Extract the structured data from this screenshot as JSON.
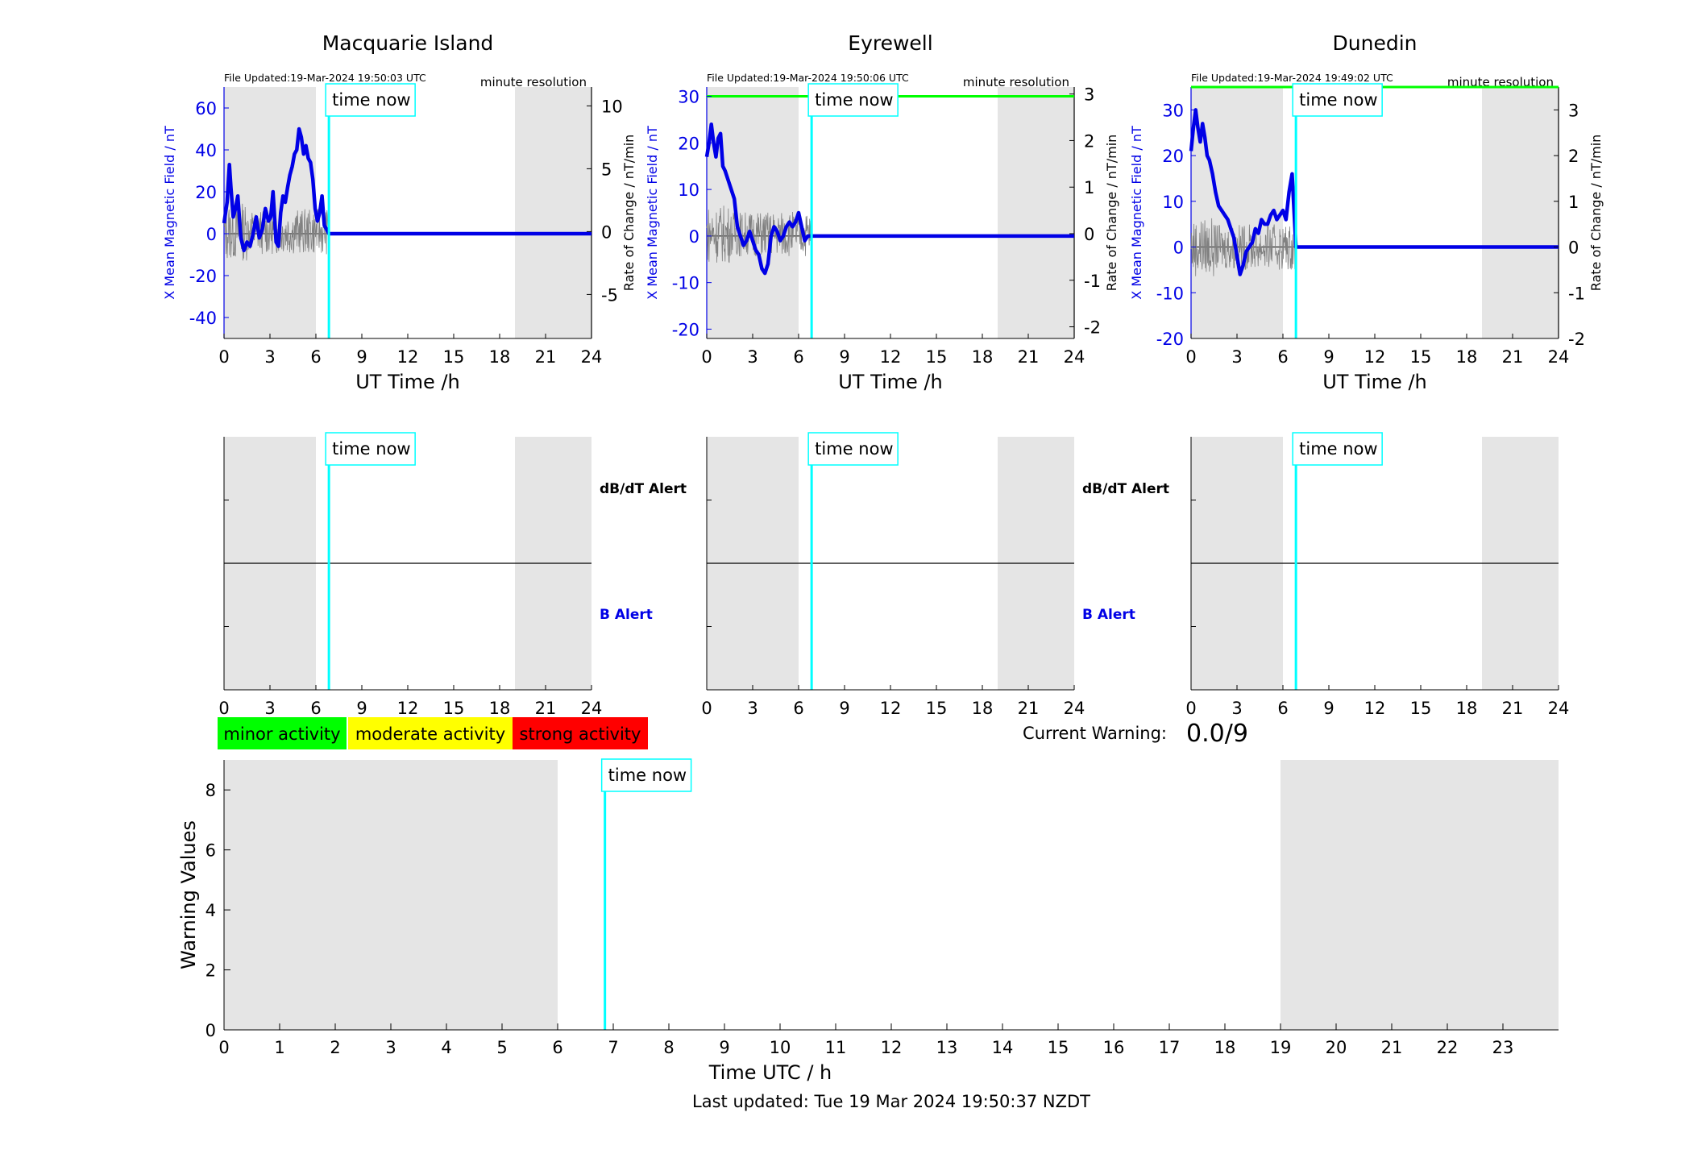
{
  "figure": {
    "last_updated": "Last updated: Tue 19 Mar 2024 19:50:37 NZDT",
    "current_warning_label": "Current Warning:",
    "current_warning_value": "0.0/9",
    "legend": [
      {
        "label": "minor activity",
        "color": "#00ff00"
      },
      {
        "label": "moderate activity",
        "color": "#ffff00"
      },
      {
        "label": "strong activity",
        "color": "#ff0000"
      }
    ],
    "time_now_label": "time now",
    "night_shading_color": "#e5e5e5",
    "time_now_color": "#00ffff",
    "field_color": "#0000e6",
    "threshold_color": "#00ff00"
  },
  "chart_data": [
    {
      "type": "line",
      "title": "Macquarie Island",
      "file_updated": "File Updated:19-Mar-2024 19:50:03 UTC",
      "resolution": "minute resolution",
      "xlabel": "UT Time /h",
      "ylabel_left": "X Mean Magnetic Field / nT",
      "ylabel_right": "Rate of Change / nT/min",
      "xlim": [
        0,
        24
      ],
      "xticks": [
        "0",
        "3",
        "6",
        "9",
        "12",
        "15",
        "18",
        "21",
        "24"
      ],
      "ylim_left": [
        -50,
        70
      ],
      "yticks_left": [
        "-40",
        "-20",
        "0",
        "20",
        "40",
        "60"
      ],
      "ylim_right": [
        -8.5,
        11.5
      ],
      "yticks_right": [
        "-5",
        "0",
        "5",
        "10"
      ],
      "time_now": 6.85,
      "night_shading": [
        [
          0,
          6
        ],
        [
          19,
          24
        ]
      ],
      "threshold": null,
      "series": [
        {
          "x": [
            0,
            0.2,
            0.35,
            0.45,
            0.6,
            0.75,
            0.9,
            1.1,
            1.3,
            1.5,
            1.7,
            1.9,
            2.1,
            2.3,
            2.5,
            2.7,
            2.9,
            3.05,
            3.2,
            3.4,
            3.55,
            3.7,
            3.85,
            4.0,
            4.15,
            4.3,
            4.45,
            4.6,
            4.75,
            4.9,
            5.05,
            5.2,
            5.35,
            5.5,
            5.65,
            5.8,
            5.95,
            6.1,
            6.25,
            6.4,
            6.55,
            6.7,
            6.85,
            24
          ],
          "values": [
            5,
            15,
            33,
            22,
            8,
            12,
            18,
            -2,
            -8,
            -4,
            -6,
            0,
            8,
            -2,
            2,
            12,
            6,
            8,
            20,
            -4,
            -6,
            10,
            18,
            15,
            22,
            28,
            32,
            38,
            40,
            50,
            46,
            38,
            42,
            36,
            34,
            26,
            12,
            6,
            10,
            18,
            4,
            2,
            0,
            0
          ]
        }
      ]
    },
    {
      "type": "line",
      "title": "Eyrewell",
      "file_updated": "File Updated:19-Mar-2024 19:50:06 UTC",
      "resolution": "minute resolution",
      "xlabel": "UT Time /h",
      "ylabel_left": "X Mean Magnetic Field / nT",
      "ylabel_right": "Rate of Change / nT/min",
      "xlim": [
        0,
        24
      ],
      "xticks": [
        "0",
        "3",
        "6",
        "9",
        "12",
        "15",
        "18",
        "21",
        "24"
      ],
      "ylim_left": [
        -22,
        32
      ],
      "yticks_left": [
        "-20",
        "-10",
        "0",
        "10",
        "20",
        "30"
      ],
      "ylim_right": [
        -2.25,
        3.15
      ],
      "yticks_right": [
        "-2",
        "-1",
        "0",
        "1",
        "2",
        "3"
      ],
      "time_now": 6.85,
      "night_shading": [
        [
          0,
          6
        ],
        [
          19,
          24
        ]
      ],
      "threshold": 30,
      "series": [
        {
          "x": [
            0,
            0.15,
            0.3,
            0.45,
            0.6,
            0.75,
            0.9,
            1.05,
            1.2,
            1.4,
            1.6,
            1.8,
            2.0,
            2.2,
            2.4,
            2.6,
            2.8,
            3.0,
            3.2,
            3.4,
            3.6,
            3.8,
            4.0,
            4.2,
            4.4,
            4.6,
            4.8,
            5.0,
            5.2,
            5.4,
            5.6,
            5.8,
            6.0,
            6.2,
            6.4,
            6.6,
            6.85,
            24
          ],
          "values": [
            17,
            20,
            24,
            20,
            17,
            21,
            22,
            15,
            14,
            12,
            10,
            8,
            2,
            0,
            -2,
            -1,
            1,
            -1,
            -3,
            -4,
            -7,
            -8,
            -6,
            0,
            2,
            1,
            -1,
            0,
            2,
            3,
            2,
            3,
            5,
            2,
            -1,
            0,
            0,
            0
          ]
        }
      ]
    },
    {
      "type": "line",
      "title": "Dunedin",
      "file_updated": "File Updated:19-Mar-2024 19:49:02 UTC",
      "resolution": "minute resolution",
      "xlabel": "UT Time /h",
      "ylabel_left": "X Mean Magnetic Field / nT",
      "ylabel_right": "Rate of Change / nT/min",
      "xlim": [
        0,
        24
      ],
      "xticks": [
        "0",
        "3",
        "6",
        "9",
        "12",
        "15",
        "18",
        "21",
        "24"
      ],
      "ylim_left": [
        -20,
        35
      ],
      "yticks_left": [
        "-20",
        "-10",
        "0",
        "10",
        "20",
        "30"
      ],
      "ylim_right": [
        -2,
        3.5
      ],
      "yticks_right": [
        "-2",
        "-1",
        "0",
        "1",
        "2",
        "3"
      ],
      "time_now": 6.85,
      "night_shading": [
        [
          0,
          6
        ],
        [
          19,
          24
        ]
      ],
      "threshold": 35,
      "series": [
        {
          "x": [
            0,
            0.15,
            0.3,
            0.45,
            0.6,
            0.75,
            0.9,
            1.05,
            1.2,
            1.4,
            1.6,
            1.8,
            2.0,
            2.2,
            2.4,
            2.6,
            2.8,
            3.0,
            3.2,
            3.4,
            3.6,
            3.8,
            4.0,
            4.2,
            4.4,
            4.6,
            4.8,
            5.0,
            5.2,
            5.4,
            5.6,
            5.8,
            6.0,
            6.2,
            6.4,
            6.6,
            6.85,
            24
          ],
          "values": [
            21,
            26,
            30,
            26,
            23,
            27,
            24,
            20,
            19,
            16,
            12,
            9,
            8,
            7,
            6,
            4,
            2,
            -2,
            -6,
            -4,
            -1,
            0,
            1,
            4,
            3,
            6,
            5,
            5,
            7,
            8,
            6,
            7,
            8,
            6,
            12,
            16,
            0,
            0
          ]
        }
      ]
    },
    {
      "type": "alert-panel",
      "xlim": [
        0,
        24
      ],
      "xticks": [
        "0",
        "3",
        "6",
        "9",
        "12",
        "15",
        "18",
        "21",
        "24"
      ],
      "labels": [
        "dB/dT Alert",
        "B Alert"
      ],
      "time_now": 6.85,
      "night_shading": [
        [
          0,
          6
        ],
        [
          19,
          24
        ]
      ]
    },
    {
      "type": "alert-panel",
      "xlim": [
        0,
        24
      ],
      "xticks": [
        "0",
        "3",
        "6",
        "9",
        "12",
        "15",
        "18",
        "21",
        "24"
      ],
      "labels": [
        "dB/dT Alert",
        "B Alert"
      ],
      "time_now": 6.85,
      "night_shading": [
        [
          0,
          6
        ],
        [
          19,
          24
        ]
      ]
    },
    {
      "type": "alert-panel",
      "xlim": [
        0,
        24
      ],
      "xticks": [
        "0",
        "3",
        "6",
        "9",
        "12",
        "15",
        "18",
        "21",
        "24"
      ],
      "labels": [],
      "time_now": 6.85,
      "night_shading": [
        [
          0,
          6
        ],
        [
          19,
          24
        ]
      ]
    },
    {
      "type": "line",
      "xlabel": "Time UTC / h",
      "ylabel": "Warning Values",
      "xlim": [
        0,
        24
      ],
      "xticks": [
        "0",
        "1",
        "2",
        "3",
        "4",
        "5",
        "6",
        "7",
        "8",
        "9",
        "10",
        "11",
        "12",
        "13",
        "14",
        "15",
        "16",
        "17",
        "18",
        "19",
        "20",
        "21",
        "22",
        "23"
      ],
      "ylim": [
        0,
        9
      ],
      "yticks": [
        "0",
        "2",
        "4",
        "6",
        "8"
      ],
      "time_now": 6.85,
      "night_shading": [
        [
          0,
          6
        ],
        [
          19,
          24
        ]
      ],
      "series": []
    }
  ]
}
